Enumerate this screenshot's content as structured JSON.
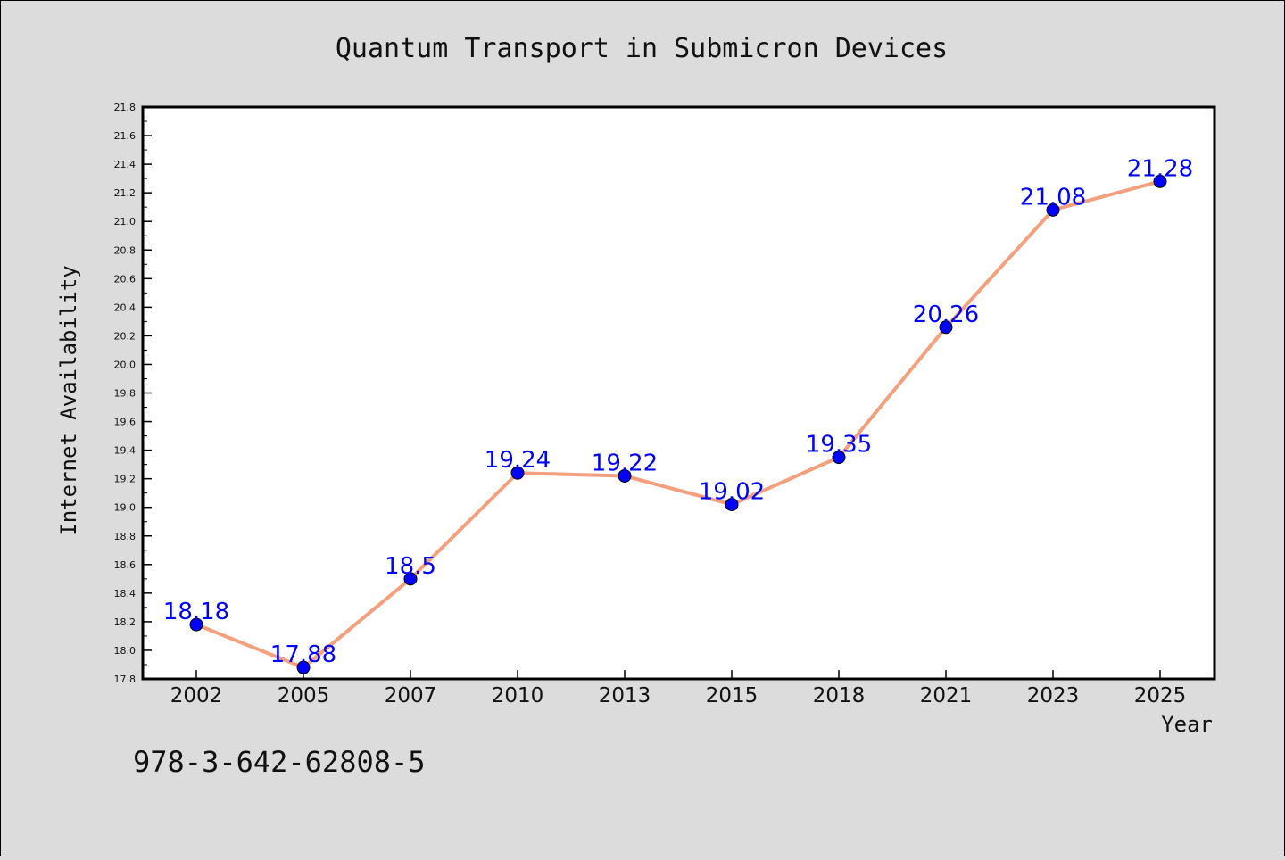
{
  "chart_data": {
    "type": "line",
    "title": "Quantum Transport in Submicron Devices",
    "xlabel": "Year",
    "ylabel": "Internet Availability",
    "categories": [
      "2002",
      "2005",
      "2007",
      "2010",
      "2013",
      "2015",
      "2018",
      "2021",
      "2023",
      "2025"
    ],
    "series": [
      {
        "values": [
          18.18,
          17.88,
          18.5,
          19.24,
          19.22,
          19.02,
          19.35,
          20.26,
          21.08,
          21.28
        ],
        "data_labels": [
          "18.18",
          "17.88",
          "18.5",
          "19.24",
          "19.22",
          "19.02",
          "19.35",
          "20.26",
          "21.08",
          "21.28"
        ]
      }
    ],
    "ylim": [
      17.8,
      21.8
    ],
    "yticks": [
      "17.8",
      "18.0",
      "18.2",
      "18.4",
      "18.6",
      "18.8",
      "19.0",
      "19.2",
      "19.4",
      "19.6",
      "19.8",
      "20.0",
      "20.2",
      "20.4",
      "20.6",
      "20.8",
      "21.0",
      "21.2",
      "21.4",
      "21.6",
      "21.8"
    ],
    "grid": false,
    "legend": "none",
    "colors": {
      "line": "#f4a07f",
      "marker": "#0000ff",
      "label": "#0000ff",
      "plot_background": "#ffffff",
      "figure_background": "#dcdcdc"
    }
  },
  "footnote": "978-3-642-62808-5"
}
